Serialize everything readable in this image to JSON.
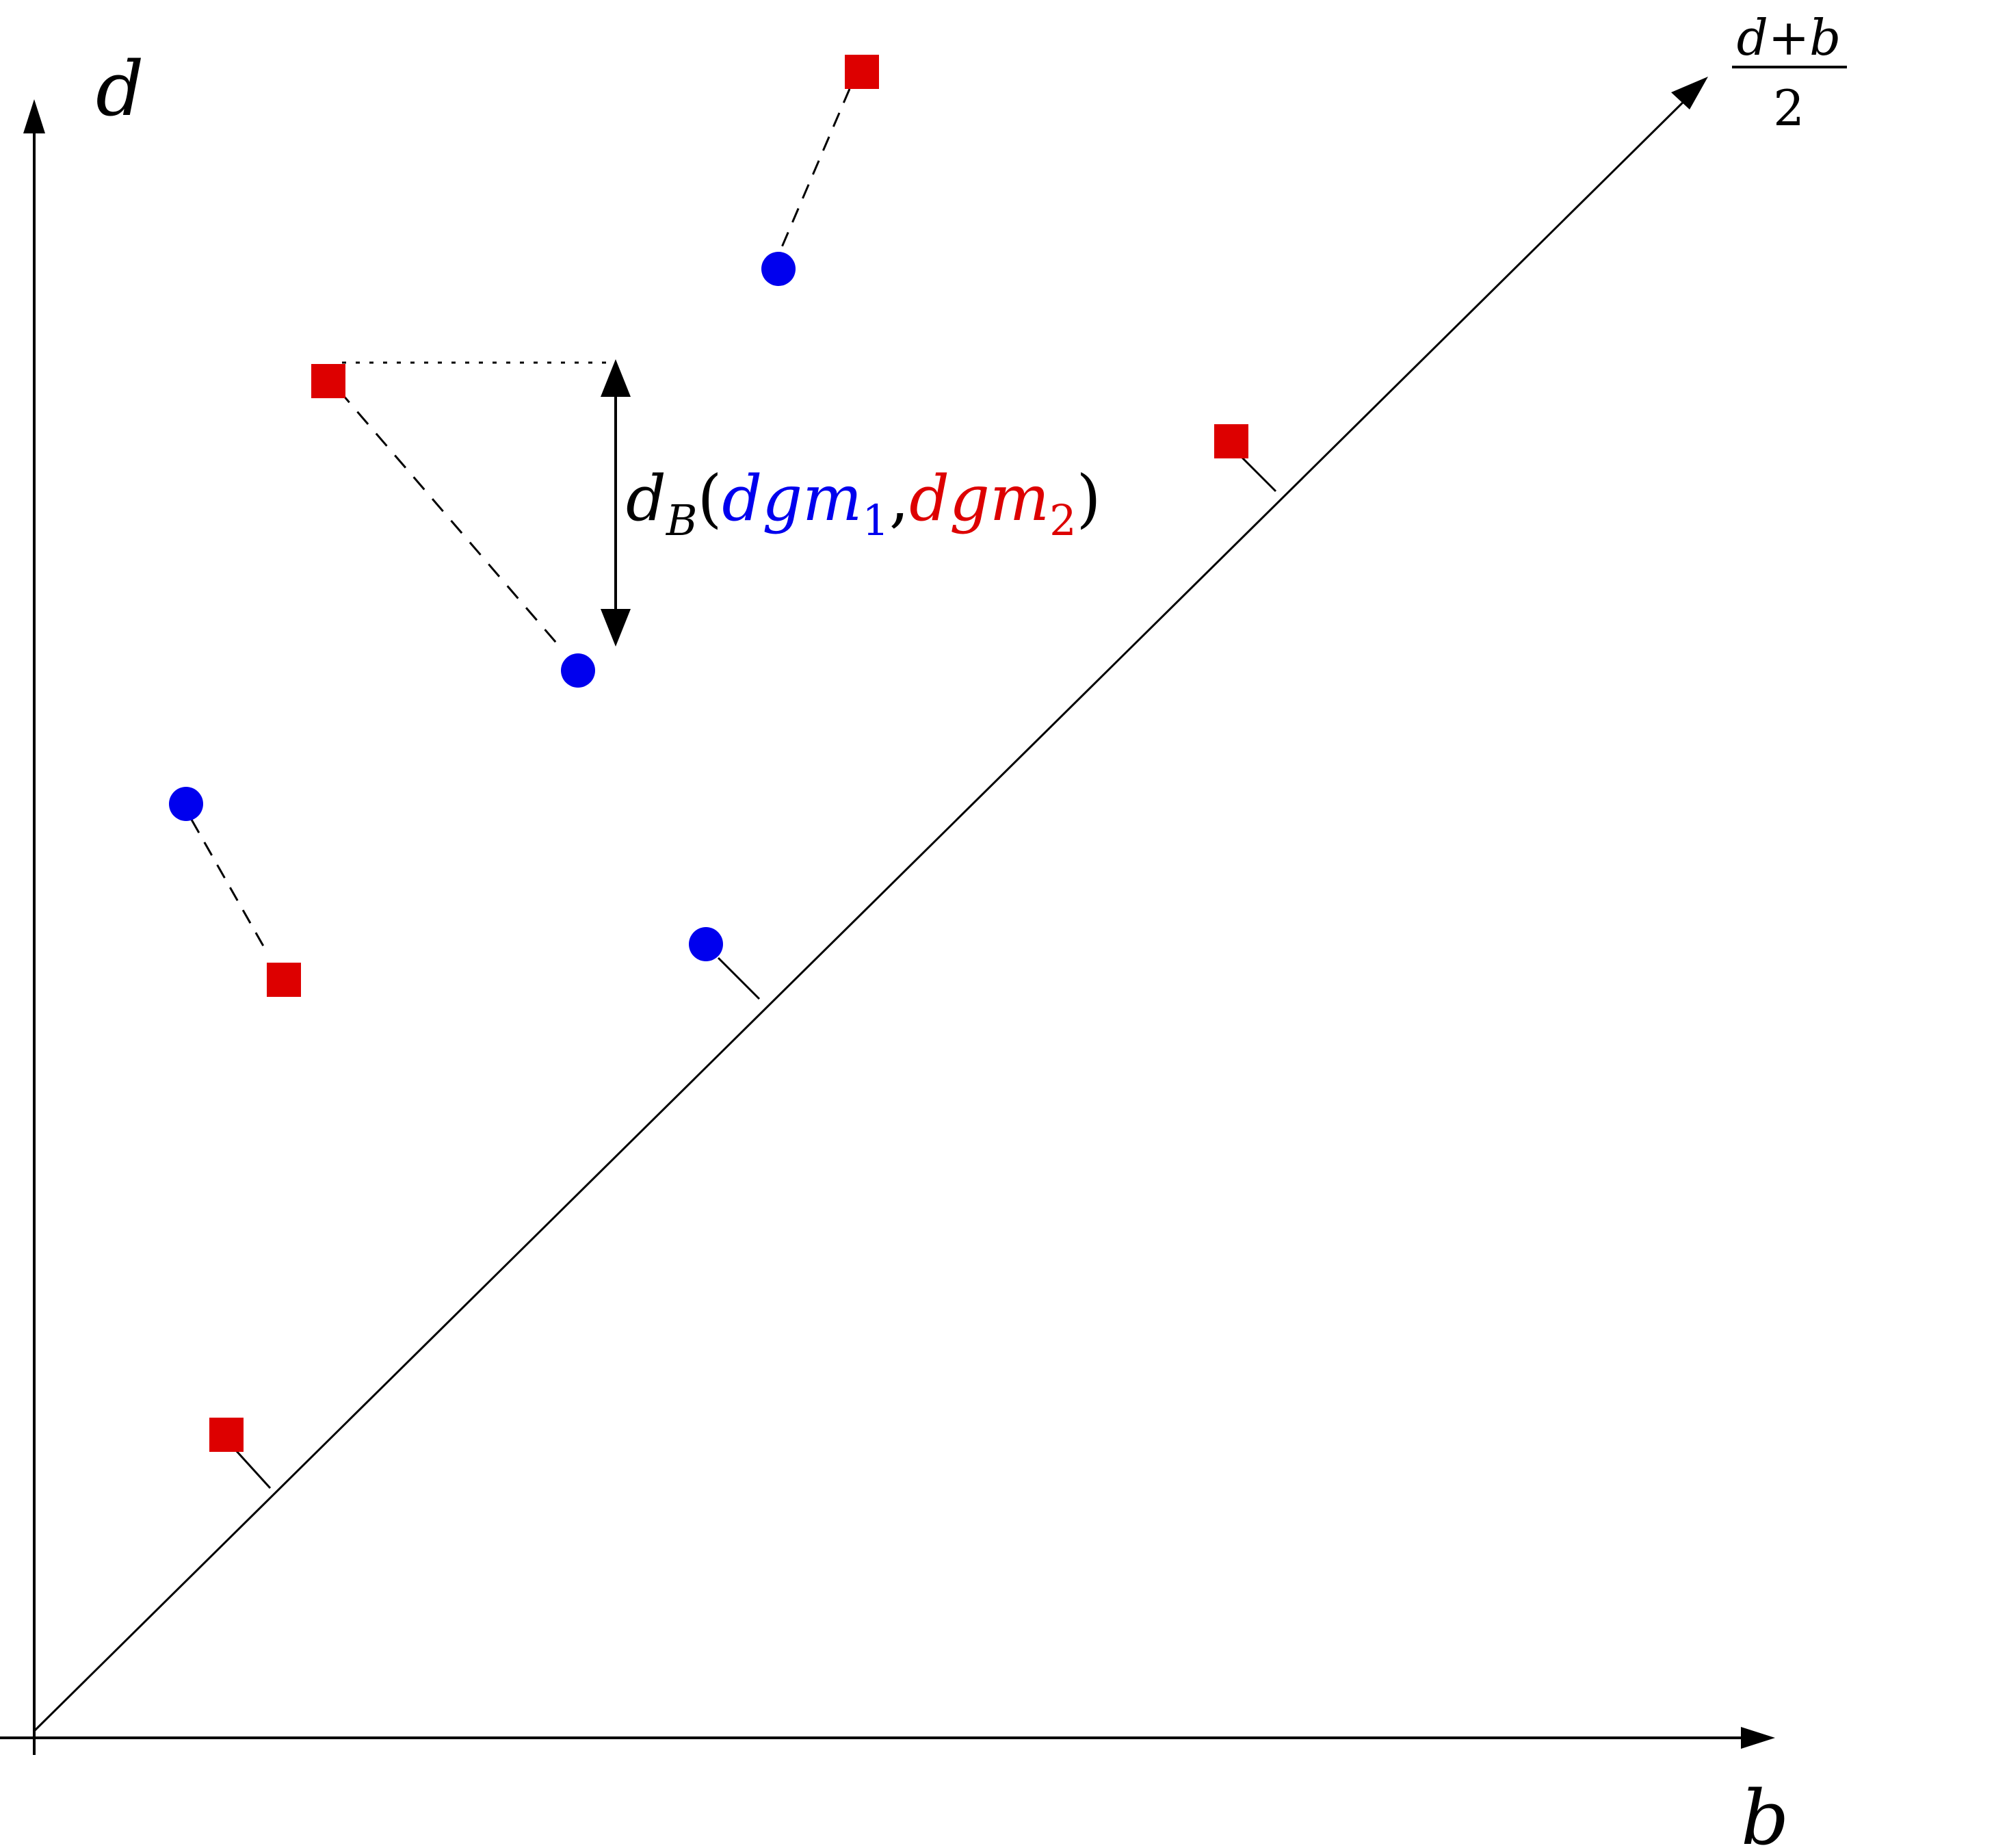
{
  "axes": {
    "y_label": "d",
    "x_label": "b",
    "diagonal_label_numerator": "d+b",
    "diagonal_label_denominator": "2"
  },
  "annotation": {
    "prefix": "d",
    "subscript_main": "B",
    "open_paren": "(",
    "diagram1": "dgm",
    "diagram1_sub": "1",
    "comma": ",",
    "diagram2": "dgm",
    "diagram2_sub": "2",
    "close_paren": ")"
  },
  "legend_colors": {
    "dgm1": "#0000ee",
    "dgm2": "#dd0000",
    "ink": "#000000"
  },
  "markers": {
    "dgm1_shape": "circle",
    "dgm2_shape": "square"
  }
}
